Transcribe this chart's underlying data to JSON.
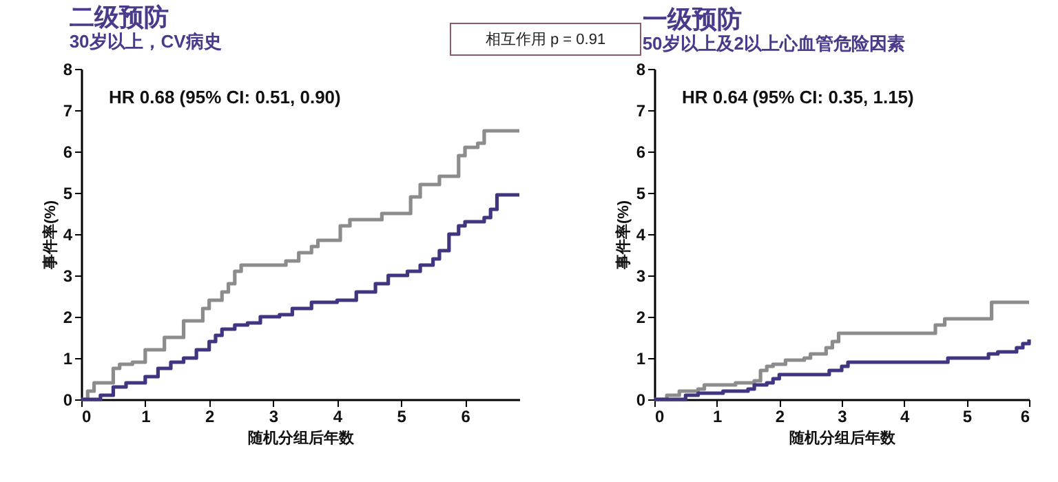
{
  "chart_data": [
    {
      "type": "step",
      "title": "二级预防",
      "subtitle": "30岁以上，CV病史",
      "xlabel": "随机分组后年数",
      "ylabel": "事件率(%)",
      "xlim": [
        0,
        6.85
      ],
      "xticks": [
        0,
        1,
        2,
        3,
        4,
        5,
        6
      ],
      "ylim": [
        0,
        8
      ],
      "yticks": [
        0,
        1,
        2,
        3,
        4,
        5,
        6,
        7,
        8
      ],
      "grid": false,
      "marker": "none",
      "annotations": [
        "HR 0.68 (95%  CI: 0.51, 0.90)",
        "相互作用 p = 0.91"
      ],
      "series": [
        {
          "color": "#8c8c8c",
          "x": [
            0,
            0.1,
            0.2,
            0.5,
            0.6,
            0.8,
            1,
            1.3,
            1.6,
            1.9,
            2.0,
            2.2,
            2.3,
            2.4,
            2.5,
            3.2,
            3.4,
            3.6,
            3.7,
            4.05,
            4.2,
            4.7,
            5.15,
            5.3,
            5.6,
            5.9,
            6.0,
            6.2,
            6.3,
            6.85
          ],
          "values": [
            0,
            0.2,
            0.4,
            0.75,
            0.85,
            0.9,
            1.2,
            1.5,
            1.9,
            2.2,
            2.4,
            2.6,
            2.8,
            3.1,
            3.25,
            3.35,
            3.55,
            3.7,
            3.85,
            4.2,
            4.35,
            4.5,
            4.9,
            5.2,
            5.4,
            5.9,
            6.1,
            6.2,
            6.5,
            6.5
          ]
        },
        {
          "color": "#3f3580",
          "x": [
            0,
            0.3,
            0.5,
            0.7,
            1.0,
            1.2,
            1.4,
            1.6,
            1.8,
            2.0,
            2.1,
            2.2,
            2.4,
            2.6,
            2.8,
            3.1,
            3.3,
            3.6,
            4.0,
            4.3,
            4.6,
            4.8,
            5.1,
            5.3,
            5.5,
            5.6,
            5.75,
            5.9,
            6.0,
            6.3,
            6.4,
            6.5,
            6.85
          ],
          "values": [
            0,
            0.1,
            0.3,
            0.4,
            0.55,
            0.75,
            0.9,
            1.0,
            1.2,
            1.4,
            1.55,
            1.7,
            1.8,
            1.85,
            2.0,
            2.05,
            2.2,
            2.35,
            2.4,
            2.6,
            2.8,
            3.0,
            3.1,
            3.25,
            3.4,
            3.6,
            4.0,
            4.2,
            4.3,
            4.4,
            4.6,
            4.95,
            4.95
          ]
        }
      ]
    },
    {
      "type": "step",
      "title": "一级预防",
      "subtitle": "50岁以上及2以上心血管危险因素",
      "xlabel": "随机分组后年数",
      "ylabel": "事件率(%)",
      "xlim": [
        0,
        6
      ],
      "xticks": [
        0,
        1,
        2,
        3,
        4,
        5,
        6
      ],
      "ylim": [
        0,
        8
      ],
      "yticks": [
        0,
        1,
        2,
        3,
        4,
        5,
        6,
        7,
        8
      ],
      "grid": false,
      "marker": "none",
      "annotations": [
        "HR 0.64 (95%  CI: 0.35, 1.15)"
      ],
      "series": [
        {
          "color": "#8c8c8c",
          "x": [
            0,
            0.2,
            0.4,
            0.7,
            0.8,
            1.3,
            1.6,
            1.7,
            1.8,
            1.9,
            2.1,
            2.4,
            2.5,
            2.75,
            2.85,
            2.95,
            4.5,
            4.65,
            5.4,
            6.0
          ],
          "values": [
            0,
            0.1,
            0.2,
            0.25,
            0.35,
            0.4,
            0.45,
            0.7,
            0.8,
            0.85,
            0.95,
            1.0,
            1.1,
            1.25,
            1.4,
            1.6,
            1.8,
            1.95,
            2.35,
            2.35
          ]
        },
        {
          "color": "#3f3580",
          "x": [
            0,
            0.5,
            0.7,
            1.1,
            1.5,
            1.6,
            1.8,
            1.9,
            2.0,
            2.8,
            3.0,
            3.1,
            4.7,
            5.35,
            5.5,
            5.8,
            5.9,
            6.0
          ],
          "values": [
            0,
            0.1,
            0.15,
            0.2,
            0.25,
            0.35,
            0.4,
            0.5,
            0.6,
            0.7,
            0.8,
            0.9,
            1.0,
            1.1,
            1.15,
            1.25,
            1.35,
            1.45
          ]
        }
      ]
    }
  ]
}
